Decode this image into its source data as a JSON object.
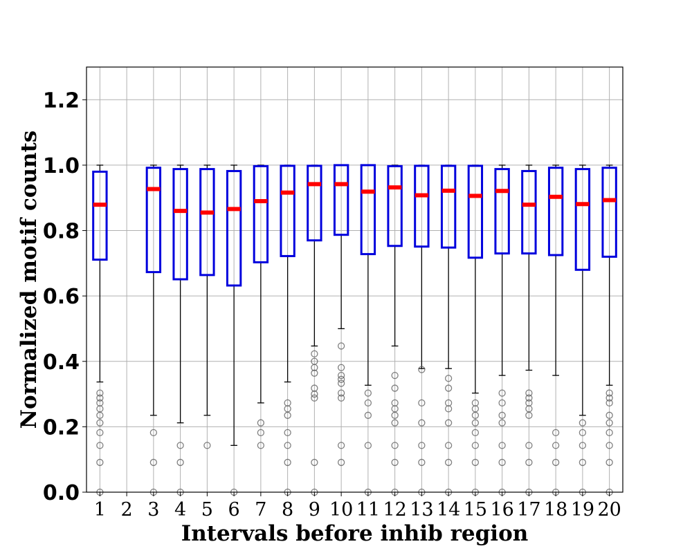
{
  "chart_data": {
    "type": "box",
    "xlabel": "Intervals before inhib region",
    "ylabel": "Normalized motif counts",
    "ylim": [
      0.0,
      1.3
    ],
    "yticks": [
      "0.0",
      "0.2",
      "0.4",
      "0.6",
      "0.8",
      "1.0",
      "1.2"
    ],
    "categories": [
      "1",
      "2",
      "3",
      "4",
      "5",
      "6",
      "7",
      "8",
      "9",
      "10",
      "11",
      "12",
      "13",
      "14",
      "15",
      "16",
      "17",
      "18",
      "19",
      "20"
    ],
    "grid": true,
    "colors": {
      "box": "#0000dd",
      "median": "#ff0000",
      "whisker": "#000000",
      "outlier": "#555555",
      "grid": "#b0b0b0"
    },
    "boxes": [
      {
        "x": "1",
        "q1": 0.711,
        "median": 0.879,
        "q3": 0.98,
        "whislo": 0.337,
        "whishi": 1.0,
        "fliers": [
          0.303,
          0.288,
          0.273,
          0.255,
          0.235,
          0.212,
          0.182,
          0.143,
          0.091,
          0.0
        ]
      },
      {
        "x": "2"
      },
      {
        "x": "3",
        "q1": 0.673,
        "median": 0.927,
        "q3": 0.992,
        "whislo": 0.235,
        "whishi": 1.0,
        "fliers": [
          0.182,
          0.091,
          0.0
        ]
      },
      {
        "x": "4",
        "q1": 0.651,
        "median": 0.86,
        "q3": 0.988,
        "whislo": 0.212,
        "whishi": 1.0,
        "fliers": [
          0.143,
          0.091,
          0.0
        ]
      },
      {
        "x": "5",
        "q1": 0.664,
        "median": 0.855,
        "q3": 0.988,
        "whislo": 0.235,
        "whishi": 1.0,
        "fliers": [
          0.143
        ]
      },
      {
        "x": "6",
        "q1": 0.632,
        "median": 0.866,
        "q3": 0.982,
        "whislo": 0.143,
        "whishi": 1.0,
        "fliers": [
          0.0
        ]
      },
      {
        "x": "7",
        "q1": 0.703,
        "median": 0.89,
        "q3": 0.997,
        "whislo": 0.273,
        "whishi": 1.0,
        "fliers": [
          0.212,
          0.182,
          0.143
        ]
      },
      {
        "x": "8",
        "q1": 0.722,
        "median": 0.916,
        "q3": 0.998,
        "whislo": 0.337,
        "whishi": 1.0,
        "fliers": [
          0.273,
          0.255,
          0.235,
          0.182,
          0.143,
          0.091,
          0.0
        ]
      },
      {
        "x": "9",
        "q1": 0.77,
        "median": 0.942,
        "q3": 0.998,
        "whislo": 0.447,
        "whishi": 1.0,
        "fliers": [
          0.423,
          0.4,
          0.381,
          0.364,
          0.318,
          0.3,
          0.288,
          0.091,
          0.0
        ]
      },
      {
        "x": "10",
        "q1": 0.787,
        "median": 0.942,
        "q3": 1.0,
        "whislo": 0.5,
        "whishi": 1.0,
        "fliers": [
          0.447,
          0.381,
          0.357,
          0.345,
          0.333,
          0.303,
          0.288,
          0.143,
          0.091
        ]
      },
      {
        "x": "11",
        "q1": 0.728,
        "median": 0.919,
        "q3": 1.0,
        "whislo": 0.327,
        "whishi": 1.0,
        "fliers": [
          0.303,
          0.273,
          0.235,
          0.143,
          0.0
        ]
      },
      {
        "x": "12",
        "q1": 0.753,
        "median": 0.932,
        "q3": 0.997,
        "whislo": 0.447,
        "whishi": 1.0,
        "fliers": [
          0.357,
          0.318,
          0.273,
          0.255,
          0.235,
          0.212,
          0.143,
          0.091,
          0.0
        ]
      },
      {
        "x": "13",
        "q1": 0.751,
        "median": 0.908,
        "q3": 0.998,
        "whislo": 0.378,
        "whishi": 1.0,
        "fliers": [
          0.375,
          0.273,
          0.212,
          0.143,
          0.091,
          0.0
        ]
      },
      {
        "x": "14",
        "q1": 0.748,
        "median": 0.922,
        "q3": 0.998,
        "whislo": 0.378,
        "whishi": 1.0,
        "fliers": [
          0.348,
          0.318,
          0.273,
          0.255,
          0.212,
          0.143,
          0.091,
          0.0
        ]
      },
      {
        "x": "15",
        "q1": 0.717,
        "median": 0.906,
        "q3": 0.998,
        "whislo": 0.303,
        "whishi": 1.0,
        "fliers": [
          0.273,
          0.255,
          0.235,
          0.212,
          0.182,
          0.143,
          0.091,
          0.0
        ]
      },
      {
        "x": "16",
        "q1": 0.73,
        "median": 0.921,
        "q3": 0.988,
        "whislo": 0.357,
        "whishi": 1.0,
        "fliers": [
          0.303,
          0.273,
          0.235,
          0.212,
          0.143,
          0.091,
          0.0
        ]
      },
      {
        "x": "17",
        "q1": 0.73,
        "median": 0.879,
        "q3": 0.982,
        "whislo": 0.373,
        "whishi": 1.0,
        "fliers": [
          0.303,
          0.288,
          0.273,
          0.255,
          0.235,
          0.143,
          0.091,
          0.0
        ]
      },
      {
        "x": "18",
        "q1": 0.725,
        "median": 0.903,
        "q3": 0.992,
        "whislo": 0.357,
        "whishi": 1.0,
        "fliers": [
          0.182,
          0.143,
          0.091,
          0.0
        ]
      },
      {
        "x": "19",
        "q1": 0.68,
        "median": 0.881,
        "q3": 0.988,
        "whislo": 0.235,
        "whishi": 1.0,
        "fliers": [
          0.212,
          0.182,
          0.143,
          0.091,
          0.0
        ]
      },
      {
        "x": "20",
        "q1": 0.72,
        "median": 0.893,
        "q3": 0.992,
        "whislo": 0.327,
        "whishi": 1.0,
        "fliers": [
          0.303,
          0.288,
          0.273,
          0.235,
          0.212,
          0.182,
          0.143,
          0.091,
          0.0
        ]
      }
    ]
  }
}
